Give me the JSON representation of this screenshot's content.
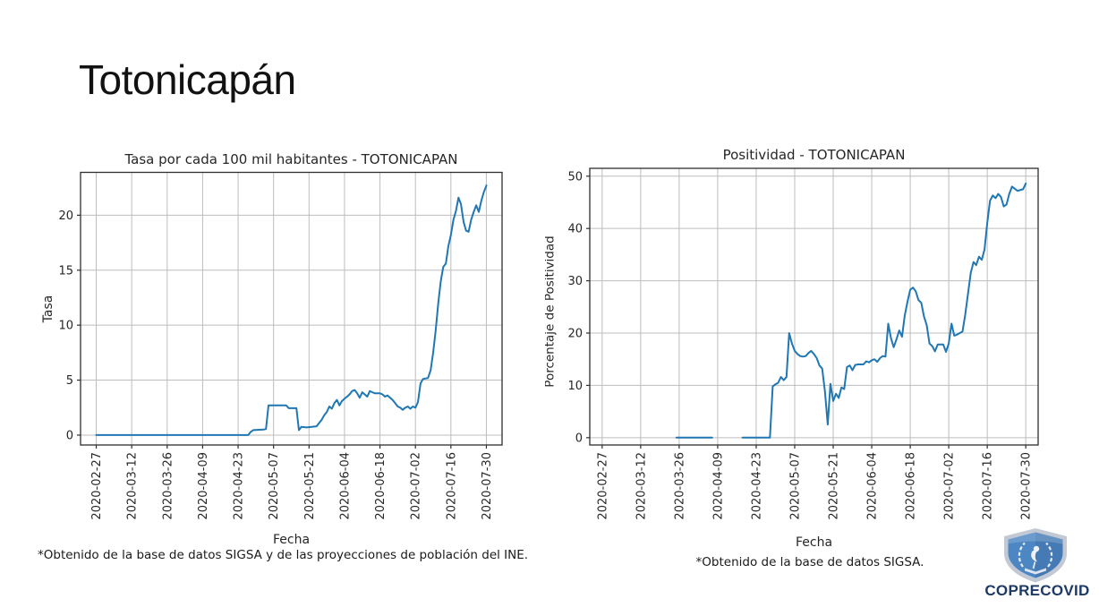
{
  "slide": {
    "title": "Totonicapán"
  },
  "logo": {
    "label": "COPRECOVID",
    "shield_color": "#4c86c3",
    "shield_border_color": "#c2c9d4",
    "text_color": "#1d3a66"
  },
  "chart_data": [
    {
      "id": "tasa",
      "type": "line",
      "title": "Tasa por cada 100 mil habitantes - TOTONICAPAN",
      "xlabel": "Fecha",
      "ylabel": "Tasa",
      "footnote": "*Obtenido de la base de datos SIGSA y de las proyecciones de población del INE.",
      "line_color": "#1f77b4",
      "grid": true,
      "grid_color": "#bdbdbd",
      "frame_color": "#2e2e2e",
      "x_tick_labels": [
        "2020-02-27",
        "2020-03-12",
        "2020-03-26",
        "2020-04-09",
        "2020-04-23",
        "2020-05-07",
        "2020-05-21",
        "2020-06-04",
        "2020-06-18",
        "2020-07-02",
        "2020-07-16",
        "2020-07-30"
      ],
      "x_tick_days": [
        0,
        14,
        28,
        42,
        56,
        70,
        84,
        98,
        112,
        126,
        140,
        154
      ],
      "yticks": [
        0,
        5,
        10,
        15,
        20
      ],
      "ylim": [
        -0.9,
        23.9
      ],
      "xlim_days": [
        -6.2,
        160.2
      ],
      "series": [
        {
          "name": "tasa",
          "segments": [
            [
              [
                0,
                0
              ],
              [
                60,
                0
              ],
              [
                61,
                0.3
              ],
              [
                62,
                0.45
              ],
              [
                66,
                0.5
              ],
              [
                67,
                0.55
              ],
              [
                68,
                2.7
              ],
              [
                75,
                2.7
              ],
              [
                76,
                2.45
              ],
              [
                79,
                2.45
              ],
              [
                80,
                0.45
              ],
              [
                81,
                0.75
              ],
              [
                83,
                0.7
              ],
              [
                87,
                0.8
              ],
              [
                88,
                1.1
              ],
              [
                89,
                1.4
              ],
              [
                90,
                1.8
              ],
              [
                91,
                2.1
              ],
              [
                92,
                2.6
              ],
              [
                93,
                2.4
              ],
              [
                94,
                2.9
              ],
              [
                95,
                3.2
              ],
              [
                96,
                2.7
              ],
              [
                97,
                3.1
              ],
              [
                98,
                3.3
              ],
              [
                99,
                3.5
              ],
              [
                100,
                3.7
              ],
              [
                101,
                4.0
              ],
              [
                102,
                4.1
              ],
              [
                103,
                3.8
              ],
              [
                104,
                3.4
              ],
              [
                105,
                3.9
              ],
              [
                106,
                3.7
              ],
              [
                107,
                3.5
              ],
              [
                108,
                4.0
              ],
              [
                109,
                3.9
              ],
              [
                110,
                3.8
              ],
              [
                112,
                3.8
              ],
              [
                113,
                3.7
              ],
              [
                114,
                3.5
              ],
              [
                115,
                3.6
              ],
              [
                116,
                3.4
              ],
              [
                117,
                3.2
              ],
              [
                118,
                2.9
              ],
              [
                119,
                2.6
              ],
              [
                120,
                2.5
              ],
              [
                121,
                2.3
              ],
              [
                122,
                2.5
              ],
              [
                123,
                2.6
              ],
              [
                124,
                2.4
              ],
              [
                125,
                2.6
              ],
              [
                126,
                2.5
              ],
              [
                127,
                3.0
              ],
              [
                128,
                4.7
              ],
              [
                129,
                5.1
              ],
              [
                131,
                5.2
              ],
              [
                132,
                5.9
              ],
              [
                133,
                7.5
              ],
              [
                134,
                9.5
              ],
              [
                135,
                12.0
              ],
              [
                136,
                14.0
              ],
              [
                137,
                15.3
              ],
              [
                138,
                15.6
              ],
              [
                139,
                17.2
              ],
              [
                140,
                18.2
              ],
              [
                141,
                19.6
              ],
              [
                142,
                20.4
              ],
              [
                143,
                21.6
              ],
              [
                144,
                21.0
              ],
              [
                145,
                19.4
              ],
              [
                146,
                18.6
              ],
              [
                147,
                18.5
              ],
              [
                148,
                19.6
              ],
              [
                149,
                20.3
              ],
              [
                150,
                20.9
              ],
              [
                151,
                20.3
              ],
              [
                152,
                21.3
              ],
              [
                153,
                22.1
              ],
              [
                154,
                22.7
              ]
            ]
          ]
        }
      ]
    },
    {
      "id": "positividad",
      "type": "line",
      "title": "Positividad - TOTONICAPAN",
      "xlabel": "Fecha",
      "ylabel": "Porcentaje de Positividad",
      "footnote": "*Obtenido de la base de datos SIGSA.",
      "line_color": "#1f77b4",
      "grid": true,
      "grid_color": "#bdbdbd",
      "frame_color": "#2e2e2e",
      "x_tick_labels": [
        "2020-02-27",
        "2020-03-12",
        "2020-03-26",
        "2020-04-09",
        "2020-04-23",
        "2020-05-07",
        "2020-05-21",
        "2020-06-04",
        "2020-06-18",
        "2020-07-02",
        "2020-07-16",
        "2020-07-30"
      ],
      "x_tick_days": [
        0,
        14,
        28,
        42,
        56,
        70,
        84,
        98,
        112,
        126,
        140,
        154
      ],
      "yticks": [
        0,
        10,
        20,
        30,
        40,
        50
      ],
      "ylim": [
        -1.4,
        51.5
      ],
      "xlim_days": [
        -4.5,
        158.5
      ],
      "series": [
        {
          "name": "positividad",
          "segments": [
            [
              [
                27,
                0
              ],
              [
                40,
                0
              ]
            ],
            [
              [
                51,
                0
              ],
              [
                61,
                0
              ],
              [
                62,
                9.8
              ],
              [
                63,
                10.2
              ],
              [
                64,
                10.5
              ],
              [
                65,
                11.6
              ],
              [
                66,
                11.0
              ],
              [
                67,
                11.6
              ],
              [
                68,
                20.0
              ],
              [
                69,
                18.0
              ],
              [
                70,
                16.6
              ],
              [
                71,
                16.0
              ],
              [
                72,
                15.6
              ],
              [
                73,
                15.5
              ],
              [
                74,
                15.6
              ],
              [
                75,
                16.2
              ],
              [
                76,
                16.6
              ],
              [
                77,
                16.0
              ],
              [
                78,
                15.2
              ],
              [
                79,
                13.8
              ],
              [
                80,
                13.2
              ],
              [
                81,
                8.8
              ],
              [
                82,
                2.5
              ],
              [
                83,
                10.3
              ],
              [
                84,
                7.0
              ],
              [
                85,
                8.4
              ],
              [
                86,
                7.6
              ],
              [
                87,
                9.6
              ],
              [
                88,
                9.3
              ],
              [
                89,
                13.5
              ],
              [
                90,
                13.8
              ],
              [
                91,
                12.9
              ],
              [
                92,
                13.9
              ],
              [
                93,
                14.0
              ],
              [
                95,
                14.0
              ],
              [
                96,
                14.6
              ],
              [
                97,
                14.4
              ],
              [
                98,
                14.8
              ],
              [
                99,
                15.0
              ],
              [
                100,
                14.5
              ],
              [
                101,
                15.2
              ],
              [
                102,
                15.6
              ],
              [
                103,
                15.5
              ],
              [
                104,
                21.8
              ],
              [
                105,
                19.0
              ],
              [
                106,
                17.3
              ],
              [
                107,
                18.8
              ],
              [
                108,
                20.5
              ],
              [
                109,
                19.3
              ],
              [
                110,
                23.3
              ],
              [
                111,
                26.0
              ],
              [
                112,
                28.3
              ],
              [
                113,
                28.7
              ],
              [
                114,
                28.0
              ],
              [
                115,
                26.3
              ],
              [
                116,
                25.8
              ],
              [
                117,
                23.2
              ],
              [
                118,
                21.5
              ],
              [
                119,
                18.0
              ],
              [
                120,
                17.5
              ],
              [
                121,
                16.5
              ],
              [
                122,
                17.8
              ],
              [
                124,
                17.8
              ],
              [
                125,
                16.4
              ],
              [
                126,
                18.0
              ],
              [
                127,
                21.8
              ],
              [
                128,
                19.5
              ],
              [
                129,
                19.7
              ],
              [
                131,
                20.3
              ],
              [
                132,
                23.5
              ],
              [
                133,
                27.5
              ],
              [
                134,
                31.5
              ],
              [
                135,
                33.6
              ],
              [
                136,
                33.0
              ],
              [
                137,
                34.6
              ],
              [
                138,
                34.0
              ],
              [
                139,
                36.0
              ],
              [
                140,
                41.0
              ],
              [
                141,
                45.3
              ],
              [
                142,
                46.3
              ],
              [
                143,
                45.8
              ],
              [
                144,
                46.6
              ],
              [
                145,
                46.0
              ],
              [
                146,
                44.2
              ],
              [
                147,
                44.6
              ],
              [
                148,
                46.6
              ],
              [
                149,
                48.0
              ],
              [
                150,
                47.6
              ],
              [
                151,
                47.2
              ],
              [
                153,
                47.5
              ],
              [
                154,
                48.6
              ]
            ]
          ]
        }
      ]
    }
  ]
}
